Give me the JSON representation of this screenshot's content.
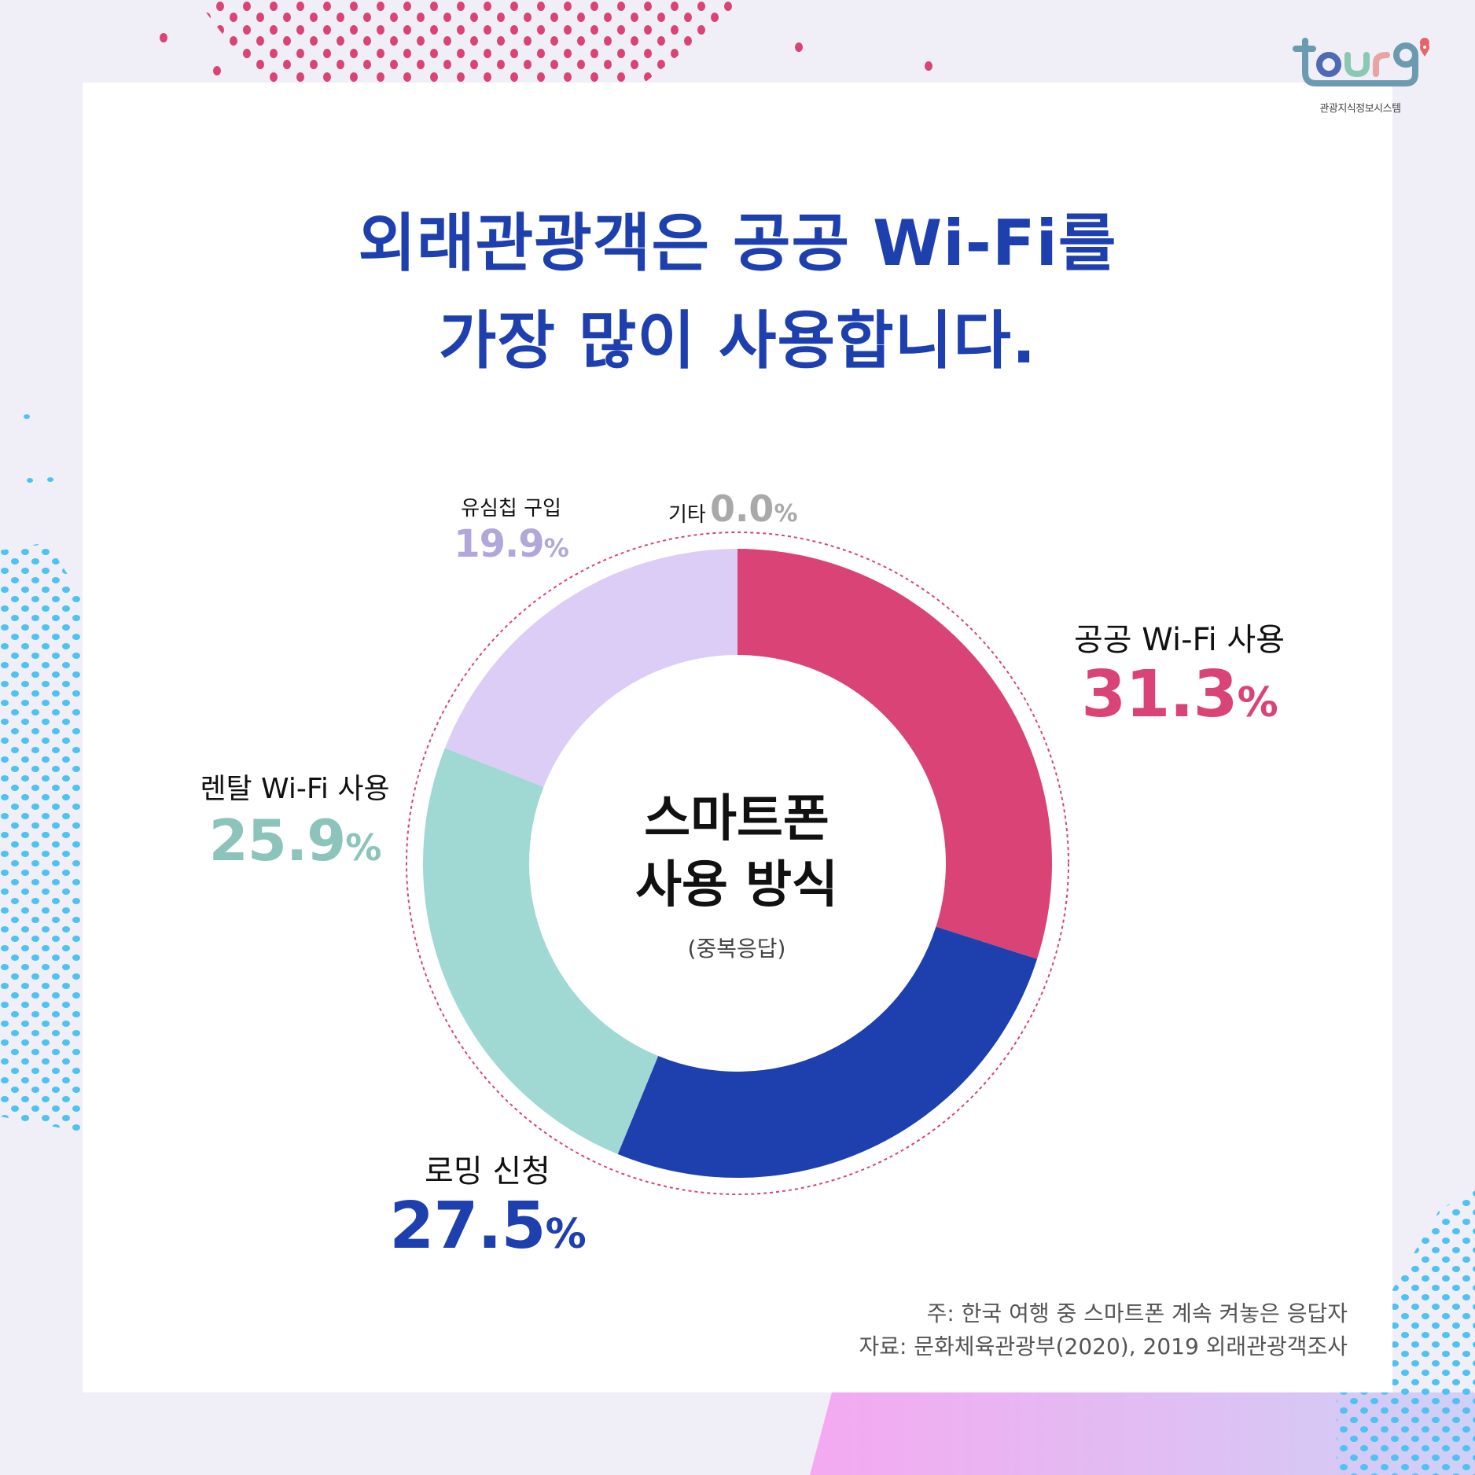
{
  "logo": {
    "wordmark": "tour9",
    "subtitle": "관광지식정보시스템",
    "pin_color": "#e8616b"
  },
  "title": {
    "line1": "외래관광객은 공공 Wi-Fi를",
    "line2": "가장 많이 사용합니다."
  },
  "center": {
    "line1": "스마트폰",
    "line2": "사용 방식",
    "note": "(중복응답)"
  },
  "segments": [
    {
      "name": "공공 Wi-Fi 사용",
      "value": "31.3",
      "pct": "%",
      "color": "#d94375",
      "label_color": "#d94375"
    },
    {
      "name": "로밍 신청",
      "value": "27.5",
      "pct": "%",
      "color": "#1e3fae",
      "label_color": "#1e3fae"
    },
    {
      "name": "렌탈 Wi-Fi 사용",
      "value": "25.9",
      "pct": "%",
      "color": "#a0d8d3",
      "label_color": "#8cc4bc"
    },
    {
      "name": "유심칩 구입",
      "value": "19.9",
      "pct": "%",
      "color": "#dccdf7",
      "label_color": "#b1a7d8"
    },
    {
      "name": "기타",
      "value": "0.0",
      "pct": "%",
      "color": "#a9a9a9",
      "label_color": "#a9a9a9"
    }
  ],
  "footnote": {
    "note": "주: 한국 여행 중 스마트폰 계속 켜놓은 응답자",
    "source": "자료: 문화체육관광부(2020), 2019 외래관광객조사"
  },
  "colors": {
    "background": "#f0eef7",
    "card": "#ffffff",
    "title": "#1e3fae",
    "dot_pink": "#d94375",
    "dot_blue": "#4cc3f2",
    "ring_dotted": "#d94375"
  },
  "chart_data": {
    "type": "pie",
    "subtype": "donut",
    "title": "외래관광객은 공공 Wi-Fi를 가장 많이 사용합니다.",
    "center_label": "스마트폰 사용 방식 (중복응답)",
    "categories": [
      "공공 Wi-Fi 사용",
      "로밍 신청",
      "렌탈 Wi-Fi 사용",
      "유심칩 구입",
      "기타"
    ],
    "values": [
      31.3,
      27.5,
      25.9,
      19.9,
      0.0
    ],
    "unit": "%",
    "colors": [
      "#d94375",
      "#1e3fae",
      "#a0d8d3",
      "#dccdf7",
      "#a9a9a9"
    ],
    "start_angle": "12 o'clock, clockwise",
    "legend": "inline labels",
    "notes": [
      "주: 한국 여행 중 스마트폰 계속 켜놓은 응답자",
      "자료: 문화체육관광부(2020), 2019 외래관광객조사"
    ]
  }
}
